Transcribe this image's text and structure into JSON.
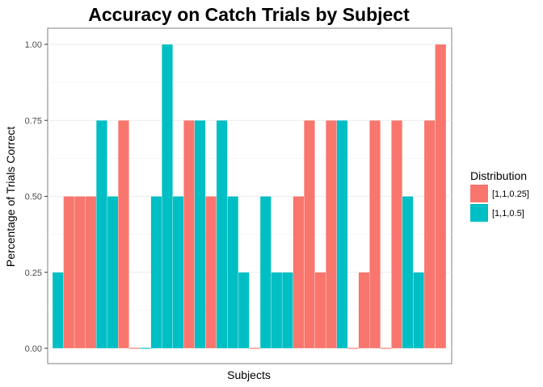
{
  "chart_data": {
    "type": "bar",
    "title": "Accuracy on Catch Trials by Subject",
    "xlabel": "Subjects",
    "ylabel": "Percentage of Trials Correct",
    "ylim": [
      0,
      1
    ],
    "yticks": [
      0.0,
      0.25,
      0.5,
      0.75,
      1.0
    ],
    "ytick_labels": [
      "0.00",
      "0.25",
      "0.50",
      "0.75",
      "1.00"
    ],
    "grid": true,
    "legend": {
      "title": "Distribution",
      "placement": "right",
      "entries": [
        {
          "label": "[1,1,0.25]",
          "color": "#F8766D"
        },
        {
          "label": "[1,1,0.5]",
          "color": "#00BFC4"
        }
      ]
    },
    "bars": [
      {
        "value": 0.25,
        "group": 1
      },
      {
        "value": 0.5,
        "group": 0
      },
      {
        "value": 0.5,
        "group": 0
      },
      {
        "value": 0.5,
        "group": 0
      },
      {
        "value": 0.75,
        "group": 1
      },
      {
        "value": 0.5,
        "group": 1
      },
      {
        "value": 0.75,
        "group": 0
      },
      {
        "value": 0.0,
        "group": 0
      },
      {
        "value": 0.0,
        "group": 1
      },
      {
        "value": 0.5,
        "group": 1
      },
      {
        "value": 1.0,
        "group": 1
      },
      {
        "value": 0.5,
        "group": 1
      },
      {
        "value": 0.75,
        "group": 0
      },
      {
        "value": 0.75,
        "group": 1
      },
      {
        "value": 0.5,
        "group": 0
      },
      {
        "value": 0.75,
        "group": 1
      },
      {
        "value": 0.5,
        "group": 1
      },
      {
        "value": 0.25,
        "group": 1
      },
      {
        "value": 0.0,
        "group": 0
      },
      {
        "value": 0.5,
        "group": 1
      },
      {
        "value": 0.25,
        "group": 1
      },
      {
        "value": 0.25,
        "group": 1
      },
      {
        "value": 0.5,
        "group": 0
      },
      {
        "value": 0.75,
        "group": 0
      },
      {
        "value": 0.25,
        "group": 0
      },
      {
        "value": 0.75,
        "group": 0
      },
      {
        "value": 0.75,
        "group": 1
      },
      {
        "value": 0.0,
        "group": 0
      },
      {
        "value": 0.25,
        "group": 0
      },
      {
        "value": 0.75,
        "group": 0
      },
      {
        "value": 0.0,
        "group": 0
      },
      {
        "value": 0.75,
        "group": 0
      },
      {
        "value": 0.5,
        "group": 1
      },
      {
        "value": 0.25,
        "group": 1
      },
      {
        "value": 0.75,
        "group": 0
      },
      {
        "value": 1.0,
        "group": 0
      }
    ]
  }
}
